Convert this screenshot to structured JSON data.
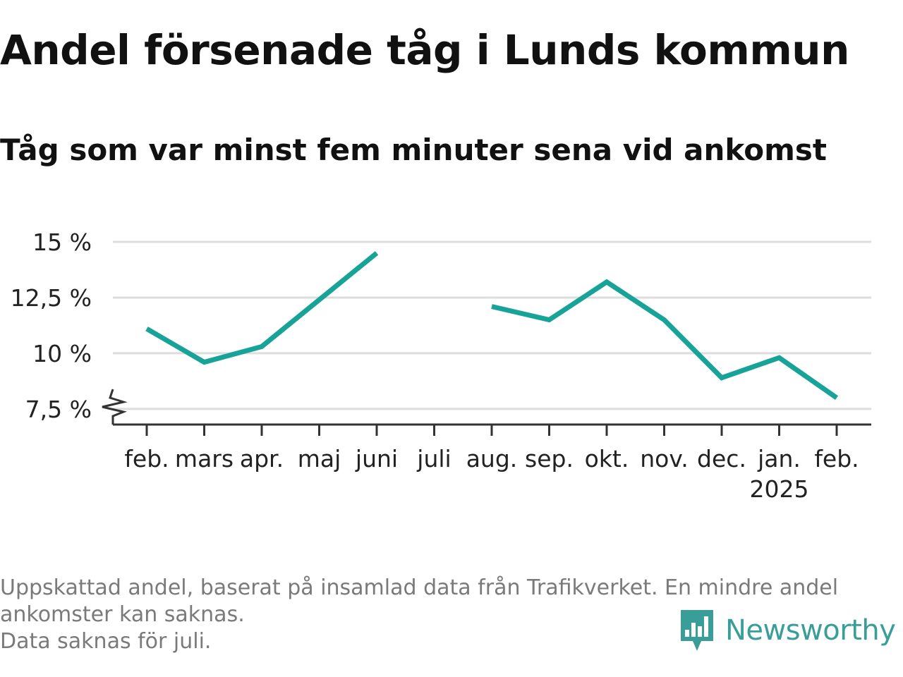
{
  "title": "Andel försenade tåg i Lunds kommun",
  "subtitle": "Tåg som var minst fem minuter sena vid ankomst",
  "footnote": {
    "lines": [
      "Uppskattad andel, baserat på insamlad data från Trafikverket. En mindre andel",
      "ankomster kan saknas.",
      "Data saknas för juli."
    ]
  },
  "logo": {
    "text": "Newsworthy",
    "icon": "newsworthy-bar-chart-icon",
    "color": "#3a9e98"
  },
  "colors": {
    "line": "#17a398",
    "grid": "#dddddd",
    "axis": "#333333",
    "text": "#222222"
  },
  "chart_data": {
    "type": "line",
    "x": [
      "feb.",
      "mars",
      "apr.",
      "maj",
      "juni",
      "juli",
      "aug.",
      "sep.",
      "okt.",
      "nov.",
      "dec.",
      "jan.",
      "feb."
    ],
    "year_labels": [
      "",
      "",
      "",
      "",
      "",
      "",
      "",
      "",
      "",
      "",
      "",
      "2025",
      ""
    ],
    "series": [
      {
        "values": [
          11.1,
          9.6,
          10.3,
          12.4,
          14.5,
          null,
          12.1,
          11.5,
          13.2,
          11.5,
          8.9,
          9.8,
          8.0
        ]
      }
    ],
    "y_ticks": [
      {
        "value": 7.5,
        "label": "7,5 %"
      },
      {
        "value": 10,
        "label": "10 %"
      },
      {
        "value": 12.5,
        "label": "12,5 %"
      },
      {
        "value": 15,
        "label": "15 %"
      }
    ],
    "ylim": [
      6.8,
      15.0
    ],
    "y_axis_break": true,
    "grid": true,
    "legend": false
  }
}
